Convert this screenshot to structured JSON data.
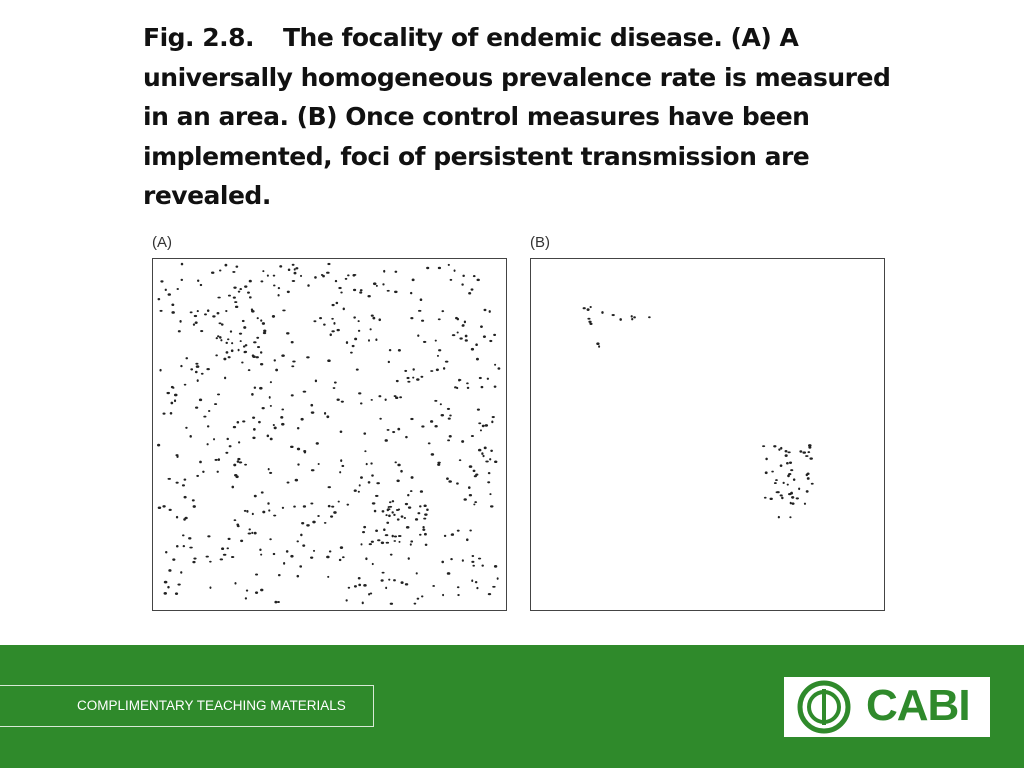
{
  "figure": {
    "label": "Fig. 2.8.",
    "caption": "The focality of endemic disease. (A) A universally homogeneous prevalence rate is measured in an area. (B) Once control measures have been implemented, foci of persistent transmission are revealed.",
    "panels": [
      {
        "label": "(A)"
      },
      {
        "label": "(B)"
      }
    ]
  },
  "footer": {
    "text": "COMPLIMENTARY TEACHING MATERIALS",
    "logo": "CABI"
  }
}
